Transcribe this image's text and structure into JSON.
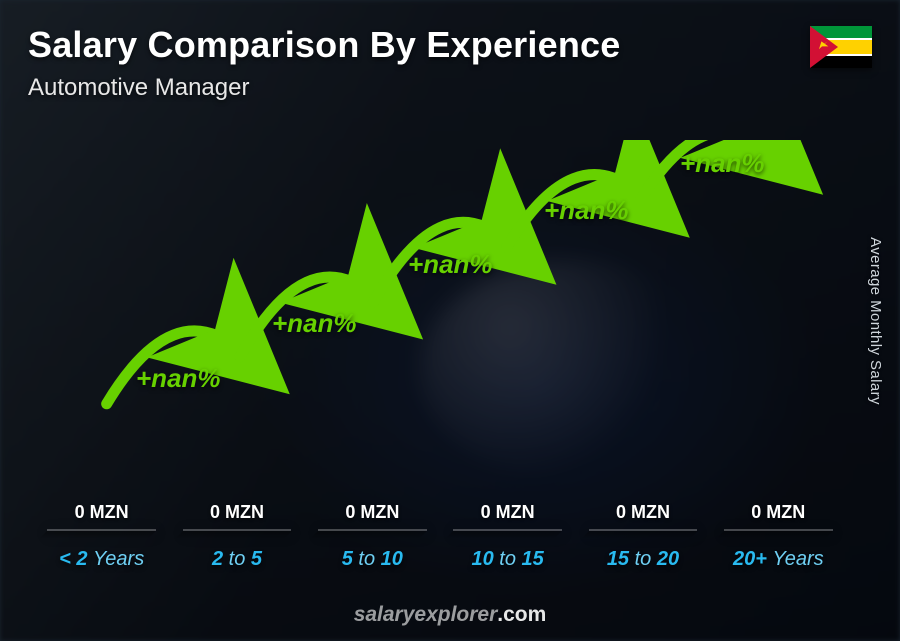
{
  "header": {
    "title": "Salary Comparison By Experience",
    "subtitle": "Automotive Manager"
  },
  "flag": {
    "name": "mozambique-flag",
    "stripes": [
      "#009639",
      "#ffffff",
      "#ffd100",
      "#ffffff",
      "#000000",
      "#ffffff",
      "#009639"
    ]
  },
  "axis": {
    "y_label": "Average Monthly Salary"
  },
  "chart": {
    "type": "bar",
    "bar_color": "#1fb0e6",
    "accent_color": "#67d100",
    "background": "#1a2530",
    "ylim_percent": [
      0,
      100
    ],
    "categories": [
      {
        "label_main": "< 2",
        "label_suffix": "Years"
      },
      {
        "label_main": "2",
        "label_mid": "to",
        "label_end": "5"
      },
      {
        "label_main": "5",
        "label_mid": "to",
        "label_end": "10"
      },
      {
        "label_main": "10",
        "label_mid": "to",
        "label_end": "15"
      },
      {
        "label_main": "15",
        "label_mid": "to",
        "label_end": "20"
      },
      {
        "label_main": "20+",
        "label_suffix": "Years"
      }
    ],
    "bars": [
      {
        "height_percent": 31,
        "value_label": "0 MZN"
      },
      {
        "height_percent": 43,
        "value_label": "0 MZN"
      },
      {
        "height_percent": 57,
        "value_label": "0 MZN"
      },
      {
        "height_percent": 71,
        "value_label": "0 MZN"
      },
      {
        "height_percent": 83,
        "value_label": "0 MZN"
      },
      {
        "height_percent": 94,
        "value_label": "0 MZN"
      }
    ],
    "increases": [
      {
        "label": "+nan%",
        "x_percent": 12,
        "y_percent": 57
      },
      {
        "label": "+nan%",
        "x_percent": 29,
        "y_percent": 43
      },
      {
        "label": "+nan%",
        "x_percent": 46,
        "y_percent": 28
      },
      {
        "label": "+nan%",
        "x_percent": 63,
        "y_percent": 14
      },
      {
        "label": "+nan%",
        "x_percent": 80,
        "y_percent": 2
      }
    ]
  },
  "footer": {
    "brand": "salaryexplorer",
    "tld": ".com"
  }
}
